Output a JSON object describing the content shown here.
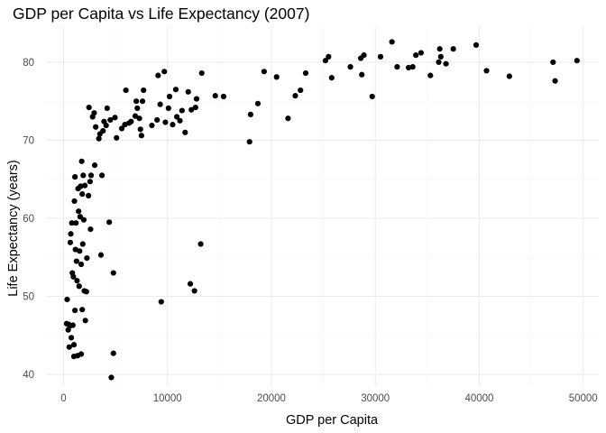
{
  "chart_data": {
    "type": "scatter",
    "title": "GDP per Capita vs Life Expectancy (2007)",
    "xlabel": "GDP per Capita",
    "ylabel": "Life Expectancy (years)",
    "xlim": [
      -1600,
      51500
    ],
    "ylim": [
      38.5,
      84.5
    ],
    "x_ticks": [
      0,
      10000,
      20000,
      30000,
      40000,
      50000
    ],
    "x_tick_labels": [
      "0",
      "10000",
      "20000",
      "30000",
      "40000",
      "50000"
    ],
    "y_ticks": [
      40,
      50,
      60,
      70,
      80
    ],
    "y_tick_labels": [
      "40",
      "50",
      "60",
      "70",
      "80"
    ],
    "grid": true,
    "legend": "none",
    "point_color": "#000000",
    "points": [
      [
        300,
        46.5
      ],
      [
        350,
        49.6
      ],
      [
        450,
        45.7
      ],
      [
        500,
        46.4
      ],
      [
        550,
        43.5
      ],
      [
        600,
        46.2
      ],
      [
        650,
        56.9
      ],
      [
        700,
        58.0
      ],
      [
        750,
        44.7
      ],
      [
        800,
        59.4
      ],
      [
        850,
        53.0
      ],
      [
        900,
        46.3
      ],
      [
        950,
        52.5
      ],
      [
        1000,
        42.3
      ],
      [
        1000,
        43.8
      ],
      [
        1050,
        62.2
      ],
      [
        1100,
        48.2
      ],
      [
        1100,
        65.3
      ],
      [
        1150,
        56.0
      ],
      [
        1200,
        59.4
      ],
      [
        1250,
        54.5
      ],
      [
        1300,
        52.0
      ],
      [
        1350,
        42.4
      ],
      [
        1400,
        63.8
      ],
      [
        1450,
        60.9
      ],
      [
        1500,
        51.3
      ],
      [
        1550,
        55.8
      ],
      [
        1600,
        60.2
      ],
      [
        1650,
        64.1
      ],
      [
        1700,
        42.6
      ],
      [
        1700,
        54.1
      ],
      [
        1750,
        67.3
      ],
      [
        1800,
        48.3
      ],
      [
        1800,
        63.1
      ],
      [
        1850,
        56.7
      ],
      [
        1900,
        65.5
      ],
      [
        1950,
        59.8
      ],
      [
        2000,
        50.7
      ],
      [
        2050,
        64.2
      ],
      [
        2100,
        46.9
      ],
      [
        2200,
        50.6
      ],
      [
        2250,
        54.9
      ],
      [
        2400,
        62.9
      ],
      [
        2450,
        74.2
      ],
      [
        2550,
        64.7
      ],
      [
        2600,
        58.6
      ],
      [
        2650,
        65.5
      ],
      [
        2800,
        73.0
      ],
      [
        2950,
        73.5
      ],
      [
        3000,
        66.8
      ],
      [
        3100,
        71.7
      ],
      [
        3400,
        70.2
      ],
      [
        3500,
        70.8
      ],
      [
        3600,
        55.3
      ],
      [
        3700,
        65.5
      ],
      [
        3800,
        71.2
      ],
      [
        3900,
        72.4
      ],
      [
        4100,
        71.9
      ],
      [
        4200,
        74.1
      ],
      [
        4400,
        59.5
      ],
      [
        4500,
        72.6
      ],
      [
        4600,
        39.6
      ],
      [
        4800,
        42.7
      ],
      [
        4800,
        53.0
      ],
      [
        4950,
        72.9
      ],
      [
        5100,
        70.3
      ],
      [
        5600,
        71.5
      ],
      [
        5900,
        72.0
      ],
      [
        6000,
        76.4
      ],
      [
        6300,
        72.2
      ],
      [
        6500,
        72.4
      ],
      [
        6900,
        73.1
      ],
      [
        7000,
        75.0
      ],
      [
        7100,
        74.1
      ],
      [
        7300,
        72.8
      ],
      [
        7400,
        71.4
      ],
      [
        7500,
        70.6
      ],
      [
        7600,
        75.0
      ],
      [
        7700,
        76.4
      ],
      [
        8500,
        71.9
      ],
      [
        9000,
        72.6
      ],
      [
        9100,
        78.3
      ],
      [
        9300,
        74.6
      ],
      [
        9400,
        49.3
      ],
      [
        9700,
        78.8
      ],
      [
        9800,
        72.3
      ],
      [
        10100,
        74.1
      ],
      [
        10200,
        75.6
      ],
      [
        10500,
        72.0
      ],
      [
        10800,
        76.5
      ],
      [
        10900,
        73.0
      ],
      [
        11200,
        72.5
      ],
      [
        11400,
        73.8
      ],
      [
        11700,
        71.0
      ],
      [
        12000,
        76.2
      ],
      [
        12200,
        51.6
      ],
      [
        12300,
        73.9
      ],
      [
        12600,
        50.7
      ],
      [
        12700,
        74.2
      ],
      [
        12800,
        75.3
      ],
      [
        13200,
        56.7
      ],
      [
        13300,
        78.6
      ],
      [
        14600,
        75.7
      ],
      [
        15400,
        75.6
      ],
      [
        17900,
        69.8
      ],
      [
        18000,
        73.3
      ],
      [
        18700,
        74.7
      ],
      [
        19300,
        78.8
      ],
      [
        20500,
        78.1
      ],
      [
        21600,
        72.8
      ],
      [
        22300,
        75.7
      ],
      [
        22800,
        76.4
      ],
      [
        23300,
        78.6
      ],
      [
        25200,
        80.2
      ],
      [
        25500,
        80.7
      ],
      [
        25800,
        78.0
      ],
      [
        27600,
        79.4
      ],
      [
        28600,
        80.5
      ],
      [
        28700,
        78.4
      ],
      [
        28900,
        80.9
      ],
      [
        29700,
        75.6
      ],
      [
        30500,
        80.7
      ],
      [
        31600,
        82.6
      ],
      [
        32100,
        79.4
      ],
      [
        33200,
        79.3
      ],
      [
        33600,
        79.4
      ],
      [
        33900,
        80.9
      ],
      [
        34400,
        81.2
      ],
      [
        35300,
        78.3
      ],
      [
        36100,
        80.0
      ],
      [
        36200,
        81.7
      ],
      [
        36300,
        80.7
      ],
      [
        36800,
        79.8
      ],
      [
        37500,
        81.7
      ],
      [
        39700,
        82.2
      ],
      [
        40700,
        78.9
      ],
      [
        42900,
        78.2
      ],
      [
        47100,
        80.0
      ],
      [
        47300,
        77.6
      ],
      [
        49400,
        80.2
      ]
    ]
  }
}
